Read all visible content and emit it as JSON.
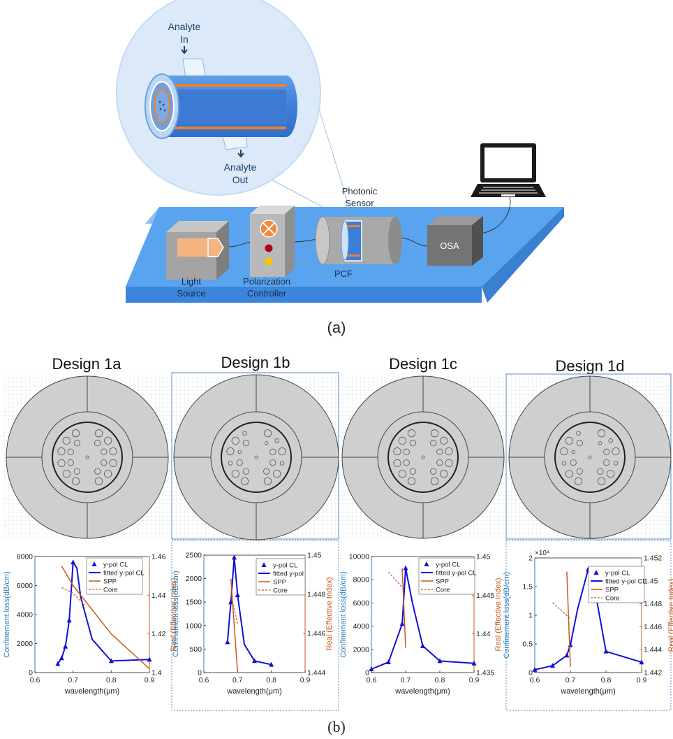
{
  "setup": {
    "analyte_in_1": "Analyte",
    "analyte_in_2": "In",
    "analyte_out_1": "Analyte",
    "analyte_out_2": "Out",
    "photonic_sensor_1": "Photonic",
    "photonic_sensor_2": "Sensor",
    "light_source_1": "Light",
    "light_source_2": "Source",
    "polarization_1": "Polarization",
    "polarization_2": "Controller",
    "pcf": "PCF",
    "osa": "OSA",
    "caption": "(a)"
  },
  "caption_b": "(b)",
  "designs": [
    {
      "title": "Design 1a"
    },
    {
      "title": "Design 1b"
    },
    {
      "title": "Design 1c"
    },
    {
      "title": "Design 1d"
    }
  ],
  "chart_data": [
    {
      "type": "line",
      "xlabel": "wavelength(μm)",
      "ylabel": "Confinement loss(dB/cm)",
      "y2label": "Real (Effective Index)",
      "xlim": [
        0.6,
        0.9
      ],
      "ylim": [
        0,
        8000
      ],
      "y2lim": [
        1.4,
        1.46
      ],
      "x_ticks": [
        "0.6",
        "0.7",
        "0.8",
        "0.9"
      ],
      "y_ticks": [
        "0",
        "2000",
        "4000",
        "6000",
        "8000"
      ],
      "y2_ticks": [
        "1.4",
        "1.42",
        "1.44",
        "1.46"
      ],
      "legend": [
        "y-pol CL",
        "fitted y-pol CL",
        "SPP",
        "Core"
      ],
      "series": [
        {
          "name": "y-pol CL",
          "x": [
            0.66,
            0.67,
            0.68,
            0.69,
            0.7,
            0.8,
            0.9
          ],
          "y": [
            600,
            1000,
            1800,
            3600,
            7600,
            800,
            900
          ]
        },
        {
          "name": "fitted y-pol CL",
          "x": [
            0.66,
            0.67,
            0.68,
            0.69,
            0.7,
            0.71,
            0.72,
            0.75,
            0.8,
            0.9
          ],
          "y": [
            600,
            1000,
            1800,
            3600,
            7600,
            7200,
            5200,
            2300,
            800,
            900
          ]
        },
        {
          "name": "SPP",
          "axis": "right",
          "x": [
            0.67,
            0.7,
            0.8,
            0.9
          ],
          "y": [
            1.455,
            1.445,
            1.42,
            1.402
          ]
        },
        {
          "name": "Core",
          "axis": "right",
          "x": [
            0.67,
            0.7,
            0.73
          ],
          "y": [
            1.444,
            1.441,
            1.435
          ]
        }
      ]
    },
    {
      "type": "line",
      "xlabel": "wavelength(μm)",
      "ylabel": "Confinement loss(dB/cm)",
      "y2label": "Real (Effective Index)",
      "xlim": [
        0.6,
        0.9
      ],
      "ylim": [
        0,
        2500
      ],
      "y2lim": [
        1.444,
        1.45
      ],
      "x_ticks": [
        "0.6",
        "0.7",
        "0.8",
        "0.9"
      ],
      "y_ticks": [
        "0",
        "500",
        "1000",
        "1500",
        "2000",
        "2500"
      ],
      "y2_ticks": [
        "1.444",
        "1.446",
        "1.448",
        "1.45"
      ],
      "legend": [
        "y-pol CL",
        "fitted y-pol",
        "SPP",
        "Core"
      ],
      "series": [
        {
          "name": "y-pol CL",
          "x": [
            0.67,
            0.68,
            0.69,
            0.7,
            0.75,
            0.8
          ],
          "y": [
            650,
            1500,
            2450,
            1650,
            250,
            170
          ]
        },
        {
          "name": "fitted y-pol",
          "x": [
            0.67,
            0.68,
            0.69,
            0.7,
            0.72,
            0.75,
            0.8
          ],
          "y": [
            650,
            1500,
            2450,
            1650,
            600,
            250,
            170
          ]
        },
        {
          "name": "SPP",
          "axis": "right",
          "x": [
            0.68,
            0.7
          ],
          "y": [
            1.4488,
            1.444
          ]
        },
        {
          "name": "Core",
          "axis": "right",
          "x": [
            0.68,
            0.7
          ],
          "y": [
            1.448,
            1.4465
          ]
        }
      ]
    },
    {
      "type": "line",
      "xlabel": "wavelength(μm)",
      "ylabel": "Confinement loss(dB/cm)",
      "y2label": "Real (Effective Index)",
      "xlim": [
        0.6,
        0.9
      ],
      "ylim": [
        0,
        10000
      ],
      "y2lim": [
        1.435,
        1.45
      ],
      "x_ticks": [
        "0.6",
        "0.7",
        "0.8",
        "0.9"
      ],
      "y_ticks": [
        "0",
        "2000",
        "4000",
        "6000",
        "8000",
        "10000"
      ],
      "y2_ticks": [
        "1.435",
        "1.44",
        "1.445",
        "1.45"
      ],
      "legend": [
        "y-pol CL",
        "fitted y-pol CL",
        "SPP",
        "Core"
      ],
      "series": [
        {
          "name": "y-pol CL",
          "x": [
            0.6,
            0.65,
            0.69,
            0.7,
            0.75,
            0.8,
            0.9
          ],
          "y": [
            300,
            900,
            4200,
            9000,
            2300,
            1000,
            800
          ]
        },
        {
          "name": "fitted y-pol CL",
          "x": [
            0.6,
            0.65,
            0.69,
            0.7,
            0.72,
            0.75,
            0.8,
            0.9
          ],
          "y": [
            300,
            900,
            4200,
            9000,
            6000,
            2300,
            1000,
            800
          ]
        },
        {
          "name": "SPP",
          "axis": "right",
          "x": [
            0.69,
            0.7
          ],
          "y": [
            1.4485,
            1.4382
          ]
        },
        {
          "name": "Core",
          "axis": "right",
          "x": [
            0.65,
            0.69
          ],
          "y": [
            1.448,
            1.446
          ]
        }
      ]
    },
    {
      "type": "line",
      "xlabel": "wavelength(μm)",
      "ylabel": "Confinement loss(dB/cm)",
      "y2label": "Real (Effective Index)",
      "y_multiplier": "×10⁴",
      "xlim": [
        0.6,
        0.9
      ],
      "ylim": [
        0,
        2
      ],
      "y2lim": [
        1.442,
        1.452
      ],
      "x_ticks": [
        "0.6",
        "0.7",
        "0.8",
        "0.9"
      ],
      "y_ticks": [
        "0",
        "0.5",
        "1",
        "1.5",
        "2"
      ],
      "y2_ticks": [
        "1.442",
        "1.444",
        "1.446",
        "1.448",
        "1.45",
        "1.452"
      ],
      "legend": [
        "y-pol CL",
        "fitted y-pol CL",
        "SPP",
        "Core"
      ],
      "series": [
        {
          "name": "y-pol CL",
          "x": [
            0.6,
            0.65,
            0.69,
            0.7,
            0.75,
            0.8,
            0.9
          ],
          "y": [
            0.05,
            0.12,
            0.3,
            0.48,
            1.8,
            0.37,
            0.18
          ]
        },
        {
          "name": "fitted y-pol CL",
          "x": [
            0.6,
            0.65,
            0.69,
            0.7,
            0.72,
            0.75,
            0.77,
            0.8,
            0.9
          ],
          "y": [
            0.05,
            0.12,
            0.3,
            0.48,
            1.1,
            1.8,
            1.4,
            0.37,
            0.18
          ]
        },
        {
          "name": "SPP",
          "axis": "right",
          "x": [
            0.69,
            0.7
          ],
          "y": [
            1.4508,
            1.4425
          ]
        },
        {
          "name": "Core",
          "axis": "right",
          "x": [
            0.65,
            0.7
          ],
          "y": [
            1.4481,
            1.4467
          ]
        }
      ]
    }
  ]
}
